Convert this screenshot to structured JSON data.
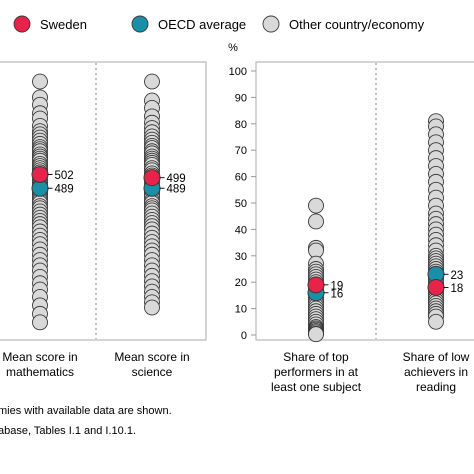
{
  "legend": [
    {
      "label": "Sweden",
      "color": "#e8234a"
    },
    {
      "label": "OECD average",
      "color": "#1a8fa8"
    },
    {
      "label": "Other country/economy",
      "color": "#d9d9d9"
    }
  ],
  "notes": [
    "mies with available data are shown.",
    "abase, Tables I.1 and I.10.1."
  ],
  "chart_data": [
    {
      "type": "scatter",
      "categories": [
        "Mean score in mathematics",
        "Mean score in science"
      ],
      "category_lines": [
        [
          "Mean score in",
          "mathematics"
        ],
        [
          "Mean score in",
          "science"
        ]
      ],
      "yaxis_visible": false,
      "ylim": [
        350,
        600
      ],
      "series": [
        {
          "name": "Sweden",
          "color": "#e8234a",
          "values": [
            502,
            499
          ]
        },
        {
          "name": "OECD average",
          "color": "#1a8fa8",
          "values": [
            489,
            489
          ]
        },
        {
          "name": "Other country/economy",
          "color": "#d9d9d9",
          "values": [
            [
              590,
              575,
              568,
              560,
              555,
              548,
              543,
              540,
              537,
              534,
              531,
              528,
              526,
              524,
              521,
              519,
              517,
              515,
              512,
              510,
              508,
              506,
              504,
              500,
              497,
              495,
              493,
              491,
              487,
              485,
              483,
              481,
              479,
              477,
              475,
              472,
              470,
              467,
              464,
              461,
              458,
              455,
              452,
              448,
              444,
              440,
              436,
              431,
              426,
              421,
              416,
              411,
              405,
              399,
              393,
              386,
              378,
              370,
              362
            ],
            [
              590,
              572,
              565,
              557,
              551,
              546,
              542,
              538,
              535,
              532,
              529,
              527,
              524,
              522,
              519,
              517,
              515,
              513,
              511,
              508,
              506,
              503,
              501,
              497,
              495,
              492,
              490,
              486,
              484,
              482,
              480,
              477,
              475,
              472,
              470,
              468,
              465,
              462,
              459,
              456,
              453,
              450,
              446,
              442,
              438,
              434,
              430,
              426,
              421,
              416,
              411,
              406,
              401,
              396,
              391,
              386,
              381,
              376
            ]
          ]
        }
      ],
      "labels": [
        {
          "text": "502",
          "series": "Sweden",
          "category": 0
        },
        {
          "text": "489",
          "series": "OECD average",
          "category": 0
        },
        {
          "text": "499",
          "series": "Sweden",
          "category": 1
        },
        {
          "text": "489",
          "series": "OECD average",
          "category": 1
        }
      ]
    },
    {
      "type": "scatter",
      "categories": [
        "Share of top performers in at least one subject",
        "Share of low achievers in reading"
      ],
      "category_lines": [
        [
          "Share of top",
          "performers in at",
          "least one subject"
        ],
        [
          "Share of low",
          "achievers in",
          "reading"
        ]
      ],
      "ylabel": "%",
      "ylim": [
        0,
        100
      ],
      "yticks": [
        0,
        10,
        20,
        30,
        40,
        50,
        60,
        70,
        80,
        90,
        100
      ],
      "series": [
        {
          "name": "Sweden",
          "color": "#e8234a",
          "values": [
            19,
            18
          ]
        },
        {
          "name": "OECD average",
          "color": "#1a8fa8",
          "values": [
            16,
            23
          ]
        },
        {
          "name": "Other country/economy",
          "color": "#d9d9d9",
          "values": [
            [
              49,
              43,
              33,
              32,
              27,
              25,
              24,
              23,
              22,
              21,
              20,
              19,
              18,
              17,
              16,
              15,
              14,
              13,
              12,
              11,
              10,
              9,
              8,
              7,
              6,
              5,
              4,
              3,
              2.5,
              2,
              1.5,
              1,
              0.5,
              0.3
            ],
            [
              81,
              79,
              76,
              73,
              70,
              67,
              64,
              61,
              58,
              55,
              52,
              49,
              46,
              44,
              42,
              40,
              38,
              36,
              34,
              32,
              30,
              29,
              28,
              27,
              26,
              25,
              24,
              23,
              22,
              21,
              20,
              19,
              18,
              17,
              16,
              15,
              14,
              13,
              12,
              11,
              10,
              9,
              8,
              7,
              5
            ]
          ]
        }
      ],
      "labels": [
        {
          "text": "19",
          "series": "Sweden",
          "category": 0
        },
        {
          "text": "16",
          "series": "OECD average",
          "category": 0
        },
        {
          "text": "23",
          "series": "OECD average",
          "category": 1
        },
        {
          "text": "18",
          "series": "Sweden",
          "category": 1
        }
      ]
    }
  ]
}
